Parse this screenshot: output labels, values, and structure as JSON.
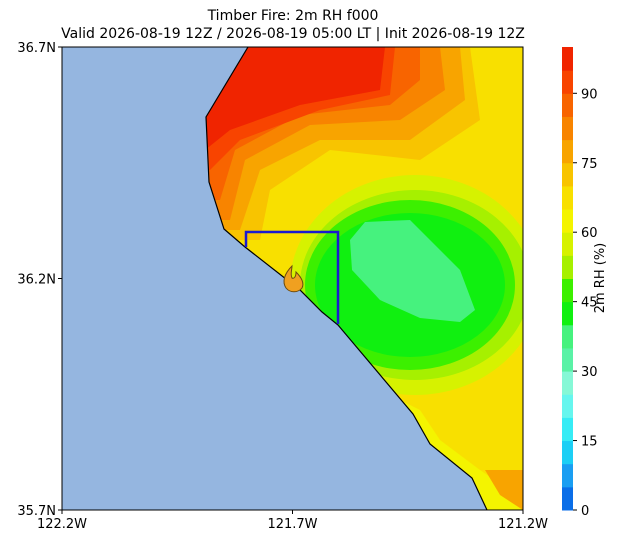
{
  "chart_data": {
    "type": "map",
    "title": "Timber Fire: 2m RH f000",
    "subtitle": "Valid 2026-08-19 12Z / 2026-08-19 05:00 LT | Init 2026-08-19 12Z",
    "xlim": [
      -122.2,
      -121.2
    ],
    "ylim": [
      35.7,
      36.7
    ],
    "xticks": [
      {
        "value": -122.2,
        "label": "122.2W"
      },
      {
        "value": -121.7,
        "label": "121.7W"
      },
      {
        "value": -121.2,
        "label": "121.2W"
      }
    ],
    "yticks": [
      {
        "value": 35.7,
        "label": "35.7N"
      },
      {
        "value": 36.2,
        "label": "36.2N"
      },
      {
        "value": 36.7,
        "label": "36.7N"
      }
    ],
    "colorbar": {
      "label": "2m RH (%)",
      "lim": [
        0,
        100
      ],
      "ticks": [
        0,
        15,
        30,
        45,
        60,
        75,
        90
      ],
      "levels": [
        0,
        5,
        10,
        15,
        20,
        25,
        30,
        35,
        40,
        45,
        50,
        55,
        60,
        65,
        70,
        75,
        80,
        85,
        90,
        95,
        100
      ],
      "colors": [
        "#0a6ee8",
        "#1a9ef2",
        "#1ccff5",
        "#36ecf5",
        "#66f6ee",
        "#86f8d6",
        "#5af2a6",
        "#46f27e",
        "#10f010",
        "#3cf000",
        "#a6f000",
        "#d6f200",
        "#f4f400",
        "#f8e000",
        "#f8c400",
        "#f8a400",
        "#f88400",
        "#f86400",
        "#f84400",
        "#f02400"
      ]
    }
  }
}
